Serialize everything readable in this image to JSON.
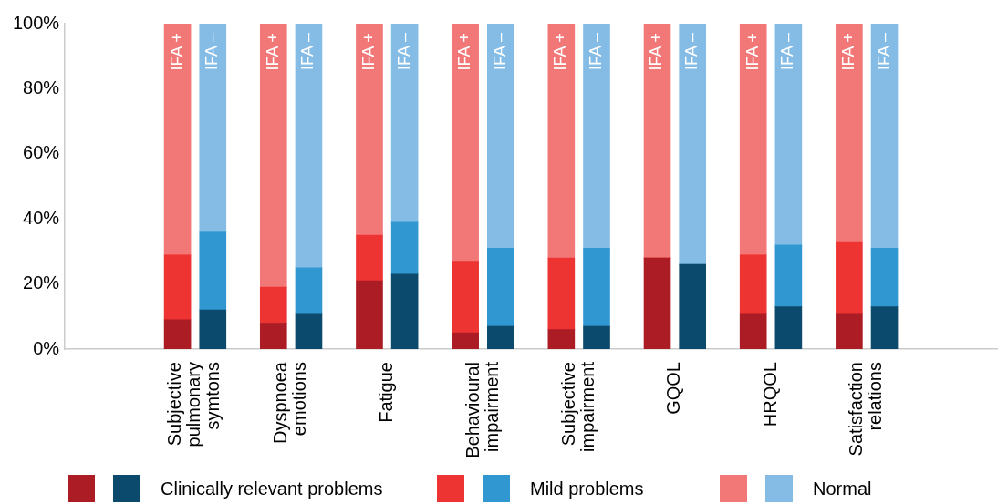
{
  "chart_data": {
    "type": "bar",
    "stacked": true,
    "categories": [
      "IFA +",
      "IFA –",
      "IFA +",
      "IFA –",
      "IFA +",
      "IFA –",
      "IFA +",
      "IFA –",
      "IFA +",
      "IFA –",
      "IFA +",
      "IFA –",
      "IFA +",
      "IFA –",
      "IFA +",
      "IFA –"
    ],
    "series": [
      {
        "name": "Clinically relevant problems",
        "colors": [
          "#ac1c24",
          "#0b4a6c",
          "#ac1c24",
          "#0b4a6c",
          "#ac1c24",
          "#0b4a6c",
          "#ac1c24",
          "#0b4a6c",
          "#ac1c24",
          "#0b4a6c",
          "#ac1c24",
          "#0b4a6c",
          "#ac1c24",
          "#0b4a6c",
          "#ac1c24",
          "#0b4a6c"
        ],
        "values": [
          9,
          12,
          8,
          11,
          21,
          23,
          5,
          7,
          6,
          7,
          28,
          26,
          11,
          13,
          11,
          13
        ]
      },
      {
        "name": "Mild problems",
        "colors": [
          "#ee3333",
          "#3197d0",
          "#ee3333",
          "#3197d0",
          "#ee3333",
          "#3197d0",
          "#ee3333",
          "#3197d0",
          "#ee3333",
          "#3197d0",
          "#ee3333",
          "#3197d0",
          "#ee3333",
          "#3197d0",
          "#ee3333",
          "#3197d0"
        ],
        "values": [
          20,
          24,
          11,
          14,
          14,
          16,
          22,
          24,
          22,
          24,
          0,
          0,
          18,
          19,
          22,
          18
        ]
      },
      {
        "name": "Normal",
        "colors": [
          "#f27878",
          "#85bce6",
          "#f27878",
          "#85bce6",
          "#f27878",
          "#85bce6",
          "#f27878",
          "#85bce6",
          "#f27878",
          "#85bce6",
          "#f27878",
          "#85bce6",
          "#f27878",
          "#85bce6",
          "#f27878",
          "#85bce6"
        ],
        "values": [
          71,
          64,
          81,
          75,
          65,
          61,
          73,
          69,
          72,
          69,
          72,
          74,
          71,
          68,
          67,
          69
        ]
      }
    ],
    "annotations": [
      "Subjective pulmonary symtons",
      "Dyspnoea emotions",
      "Fatigue",
      "Behavioural impairment",
      "Subjective impairment",
      "GQOL",
      "HRQOL",
      "Satisfaction relations"
    ],
    "ylim": [
      0,
      100
    ],
    "yticks": [
      {
        "value": 0,
        "label": "0%"
      },
      {
        "value": 20,
        "label": "20%"
      },
      {
        "value": 40,
        "label": "40%"
      },
      {
        "value": 60,
        "label": "60%"
      },
      {
        "value": 80,
        "label": "80%"
      },
      {
        "value": 100,
        "label": "100%"
      }
    ],
    "grid": false,
    "legend": "bottom"
  }
}
